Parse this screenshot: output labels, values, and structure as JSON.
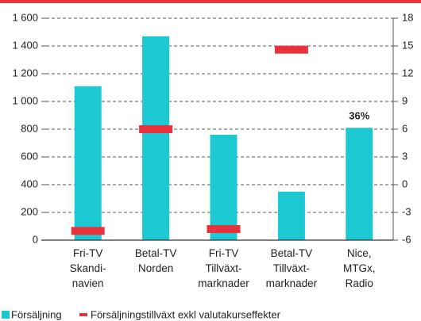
{
  "chart_data": {
    "type": "bar",
    "categories": [
      "Fri-TV\nSkandi-\nnavien",
      "Betal-TV\nNorden",
      "Fri-TV\nTillväxt-\nmarknader",
      "Betal-TV\nTillväxt-\nmarknader",
      "Nice,\nMTGx,\nRadio"
    ],
    "series": [
      {
        "name": "Försäljning",
        "type": "bar",
        "color": "#1cc8d2",
        "values": [
          1110,
          1470,
          760,
          350,
          810
        ]
      },
      {
        "name": "Försäljningstillväxt exkl valutakurseffekter",
        "type": "marker",
        "color": "#e8333e",
        "axis": "y2",
        "values": [
          -5,
          6,
          -4.8,
          14.6,
          null
        ]
      }
    ],
    "annotation": "36%",
    "ylim": [
      0,
      1600
    ],
    "yticks": [
      0,
      200,
      400,
      600,
      800,
      {
        "value": 1000,
        "label": "1 000"
      },
      {
        "value": 1200,
        "label": "1 200"
      },
      {
        "value": 1400,
        "label": "1 400"
      },
      {
        "value": 1600,
        "label": "1 600"
      }
    ],
    "y2lim": [
      -6,
      18
    ],
    "y2ticks": [
      -6,
      -3,
      0,
      3,
      6,
      9,
      12,
      15,
      18
    ],
    "grid": true
  }
}
